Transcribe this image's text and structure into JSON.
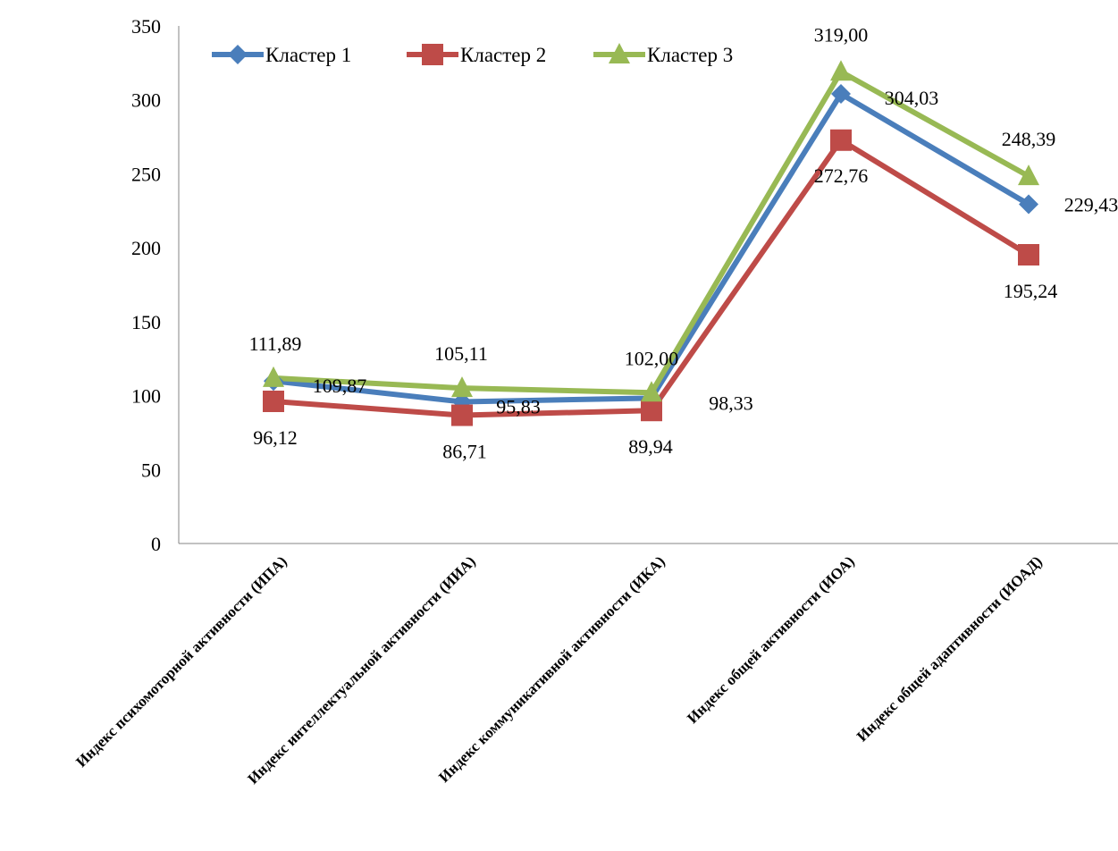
{
  "chart_data": {
    "type": "line",
    "title": "",
    "xlabel": "",
    "ylabel": "",
    "ylim": [
      0,
      350
    ],
    "yticks": [
      0,
      50,
      100,
      150,
      200,
      250,
      300,
      350
    ],
    "grid": false,
    "legend_position": "top-left",
    "categories": [
      "Индекс психомоторной активности (ИПА)",
      "Индекс интеллектуальной активности (ИИА)",
      "Индекс коммуникативной активности (ИКА)",
      "Индекс общей активности (ИОА)",
      "Индекс общей адаптивности (ИОАД)"
    ],
    "series": [
      {
        "name": "Кластер 1",
        "color": "#4a7ebb",
        "marker": "diamond",
        "values": [
          109.87,
          95.83,
          98.33,
          304.03,
          229.43
        ],
        "labels": [
          "109,87",
          "95,83",
          "98,33",
          "304,03",
          "229,43"
        ]
      },
      {
        "name": "Кластер 2",
        "color": "#be4b48",
        "marker": "square",
        "values": [
          96.12,
          86.71,
          89.94,
          272.76,
          195.24
        ],
        "labels": [
          "96,12",
          "86,71",
          "89,94",
          "272,76",
          "195,24"
        ]
      },
      {
        "name": "Кластер 3",
        "color": "#98b954",
        "marker": "triangle",
        "values": [
          111.89,
          105.11,
          102.0,
          319.0,
          248.39
        ],
        "labels": [
          "111,89",
          "105,11",
          "102,00",
          "319,00",
          "248,39"
        ]
      }
    ]
  }
}
